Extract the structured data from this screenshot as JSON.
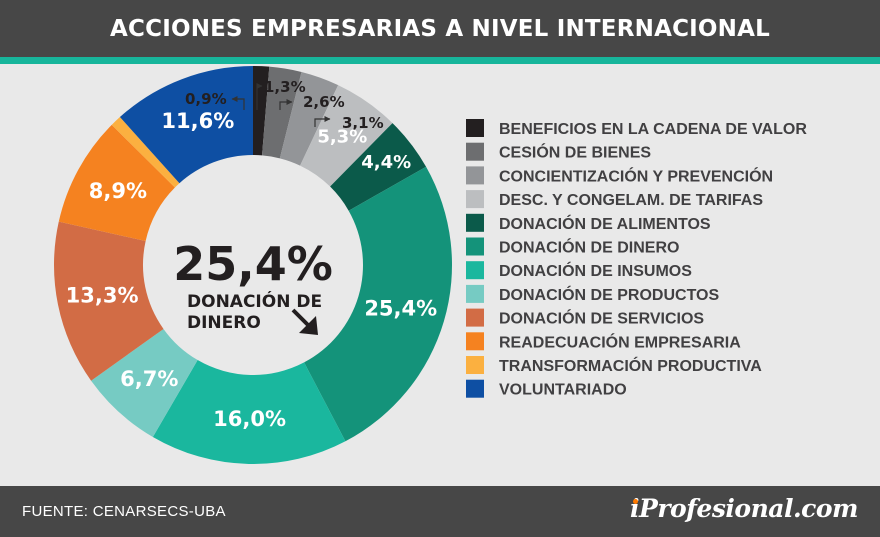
{
  "header": {
    "title": "ACCIONES EMPRESARIAS A NIVEL INTERNACIONAL"
  },
  "footer": {
    "source": "FUENTE:  CENARSECS-UBA",
    "logo_i": "i",
    "logo_rest": "Profesional.com"
  },
  "center": {
    "value": "25,4%",
    "line1": "DONACIÓN DE",
    "line2": "DINERO"
  },
  "colors": {
    "header_bg": "#474747",
    "accent": "#17b59b",
    "background": "#e9e9e9"
  },
  "chart_data": {
    "type": "pie",
    "variant": "donut",
    "title": "ACCIONES EMPRESARIAS A NIVEL INTERNACIONAL",
    "legend_placement": "right",
    "slices": [
      {
        "label": "BENEFICIOS EN LA CADENA DE VALOR",
        "value": 1.3,
        "display": "1,3%",
        "color": "#231f20"
      },
      {
        "label": "CESIÓN DE BIENES",
        "value": 2.6,
        "display": "2,6%",
        "color": "#6d6e70"
      },
      {
        "label": "CONCIENTIZACIÓN Y PREVENCIÓN",
        "value": 3.1,
        "display": "3,1%",
        "color": "#939598"
      },
      {
        "label": "DESC. Y CONGELAM. DE TARIFAS",
        "value": 5.3,
        "display": "5,3%",
        "color": "#bcbec0"
      },
      {
        "label": "DONACIÓN DE ALIMENTOS",
        "value": 4.4,
        "display": "4,4%",
        "color": "#0b5a4a"
      },
      {
        "label": "DONACIÓN DE DINERO",
        "value": 25.4,
        "display": "25,4%",
        "color": "#14937a"
      },
      {
        "label": "DONACIÓN DE INSUMOS",
        "value": 16.0,
        "display": "16,0%",
        "color": "#1ab79e"
      },
      {
        "label": "DONACIÓN DE PRODUCTOS",
        "value": 6.7,
        "display": "6,7%",
        "color": "#76cbc3"
      },
      {
        "label": "DONACIÓN DE SERVICIOS",
        "value": 13.3,
        "display": "13,3%",
        "color": "#d26c45"
      },
      {
        "label": "READECUACIÓN EMPRESARIA",
        "value": 8.9,
        "display": "8,9%",
        "color": "#f58220"
      },
      {
        "label": "TRANSFORMACIÓN PRODUCTIVA",
        "value": 0.9,
        "display": "0,9%",
        "color": "#fbb040"
      },
      {
        "label": "VOLUNTARIADO",
        "value": 11.6,
        "display": "11,6%",
        "color": "#0e4fa3"
      }
    ]
  }
}
